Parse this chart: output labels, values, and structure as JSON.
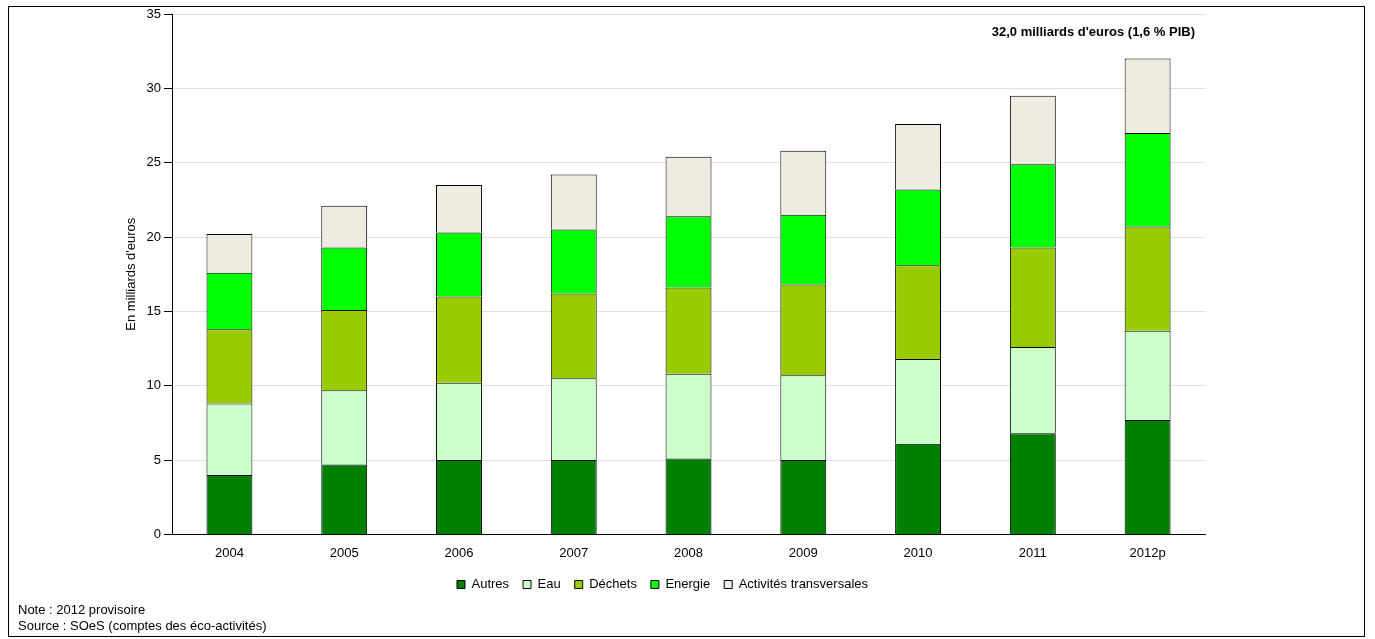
{
  "chart_data": {
    "type": "bar",
    "stacked": true,
    "ylabel": "En milliards d'euros",
    "categories": [
      "2004",
      "2005",
      "2006",
      "2007",
      "2008",
      "2009",
      "2010",
      "2011",
      "2012p"
    ],
    "series": [
      {
        "name": "Autres",
        "color": "#008000",
        "values": [
          4.0,
          4.7,
          5.0,
          5.0,
          5.1,
          5.0,
          6.1,
          6.8,
          7.7
        ]
      },
      {
        "name": "Eau",
        "color": "#ccffcc",
        "values": [
          4.8,
          5.0,
          5.2,
          5.5,
          5.7,
          5.7,
          5.7,
          5.8,
          6.0
        ]
      },
      {
        "name": "Déchets",
        "color": "#99cc00",
        "values": [
          5.0,
          5.4,
          5.8,
          5.7,
          5.8,
          6.1,
          6.3,
          6.7,
          7.0
        ]
      },
      {
        "name": "Energie",
        "color": "#00ff00",
        "values": [
          3.8,
          4.2,
          4.3,
          4.3,
          4.8,
          4.7,
          5.1,
          5.6,
          6.3
        ]
      },
      {
        "name": "Activités transversales",
        "color": "#eeece1",
        "values": [
          2.6,
          2.8,
          3.2,
          3.7,
          4.0,
          4.3,
          4.4,
          4.6,
          5.0
        ]
      }
    ],
    "ylim": [
      0,
      35
    ],
    "yticks": [
      0,
      5,
      10,
      15,
      20,
      25,
      30,
      35
    ],
    "grid": "y",
    "legend": "bottom",
    "annotations": [
      "32,0 milliards d'euros (1,6 % PIB)",
      "Note : 2012 provisoire",
      "Source : SOeS (comptes des éco-activités)"
    ]
  }
}
